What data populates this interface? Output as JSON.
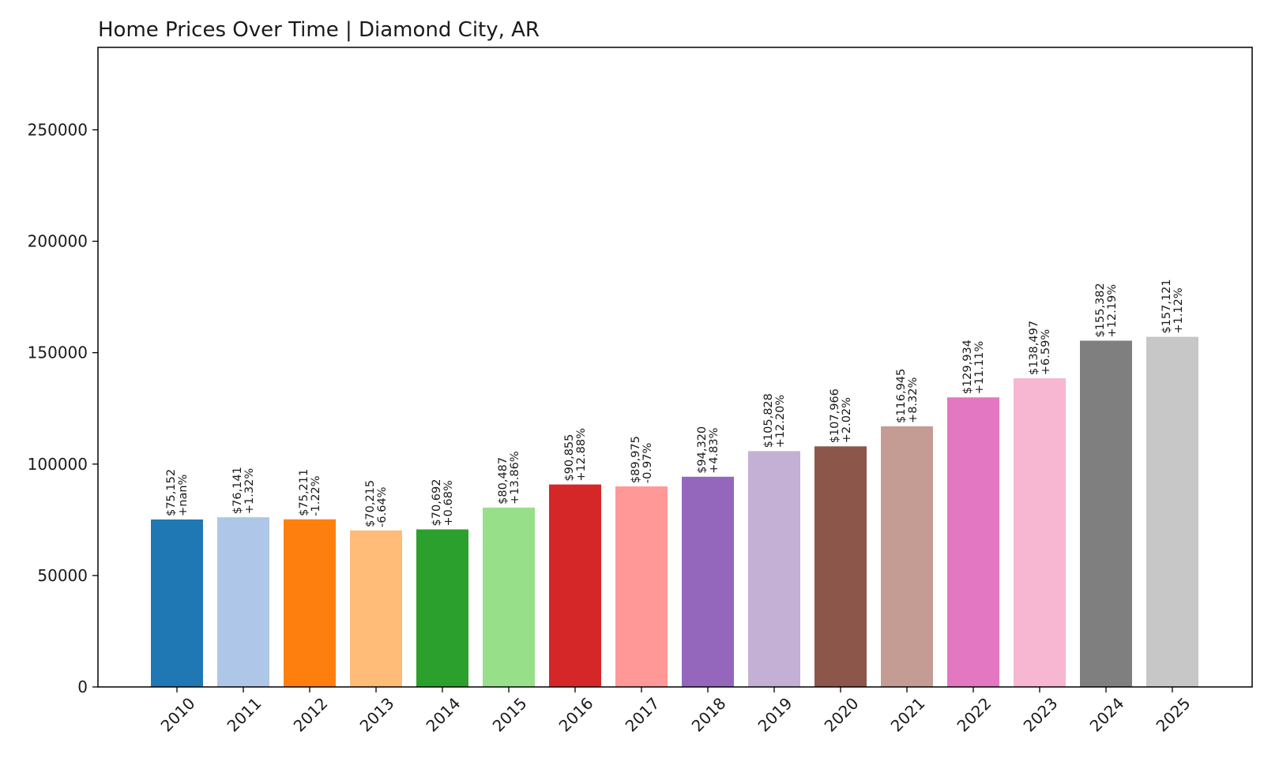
{
  "chart_data": {
    "type": "bar",
    "title": "Home Prices Over Time | Diamond City, AR",
    "xlabel": "",
    "ylabel": "",
    "ylim": [
      0,
      287000
    ],
    "yticks": [
      0,
      50000,
      100000,
      150000,
      200000,
      250000
    ],
    "ytick_labels": [
      "0",
      "50000",
      "100000",
      "150000",
      "200000",
      "250000"
    ],
    "grid": false,
    "categories": [
      "2010",
      "2011",
      "2012",
      "2013",
      "2014",
      "2015",
      "2016",
      "2017",
      "2018",
      "2019",
      "2020",
      "2021",
      "2022",
      "2023",
      "2024",
      "2025"
    ],
    "values": [
      75152,
      76141,
      75211,
      70215,
      70692,
      80487,
      90855,
      89975,
      94320,
      105828,
      107966,
      116945,
      129934,
      138497,
      155382,
      157121
    ],
    "price_labels": [
      "$75,152",
      "$76,141",
      "$75,211",
      "$70,215",
      "$70,692",
      "$80,487",
      "$90,855",
      "$89,975",
      "$94,320",
      "$105,828",
      "$107,966",
      "$116,945",
      "$129,934",
      "$138,497",
      "$155,382",
      "$157,121"
    ],
    "change_labels": [
      "+nan%",
      "+1.32%",
      "-1.22%",
      "-6.64%",
      "+0.68%",
      "+13.86%",
      "+12.88%",
      "-0.97%",
      "+4.83%",
      "+12.20%",
      "+2.02%",
      "+8.32%",
      "+11.11%",
      "+6.59%",
      "+12.19%",
      "+1.12%"
    ],
    "colors": [
      "#1f77b4",
      "#aec7e8",
      "#ff7f0e",
      "#ffbb78",
      "#2ca02c",
      "#98df8a",
      "#d62728",
      "#ff9896",
      "#9467bd",
      "#c5b0d5",
      "#8c564b",
      "#c49c94",
      "#e377c2",
      "#f7b6d2",
      "#7f7f7f",
      "#c7c7c7"
    ]
  }
}
